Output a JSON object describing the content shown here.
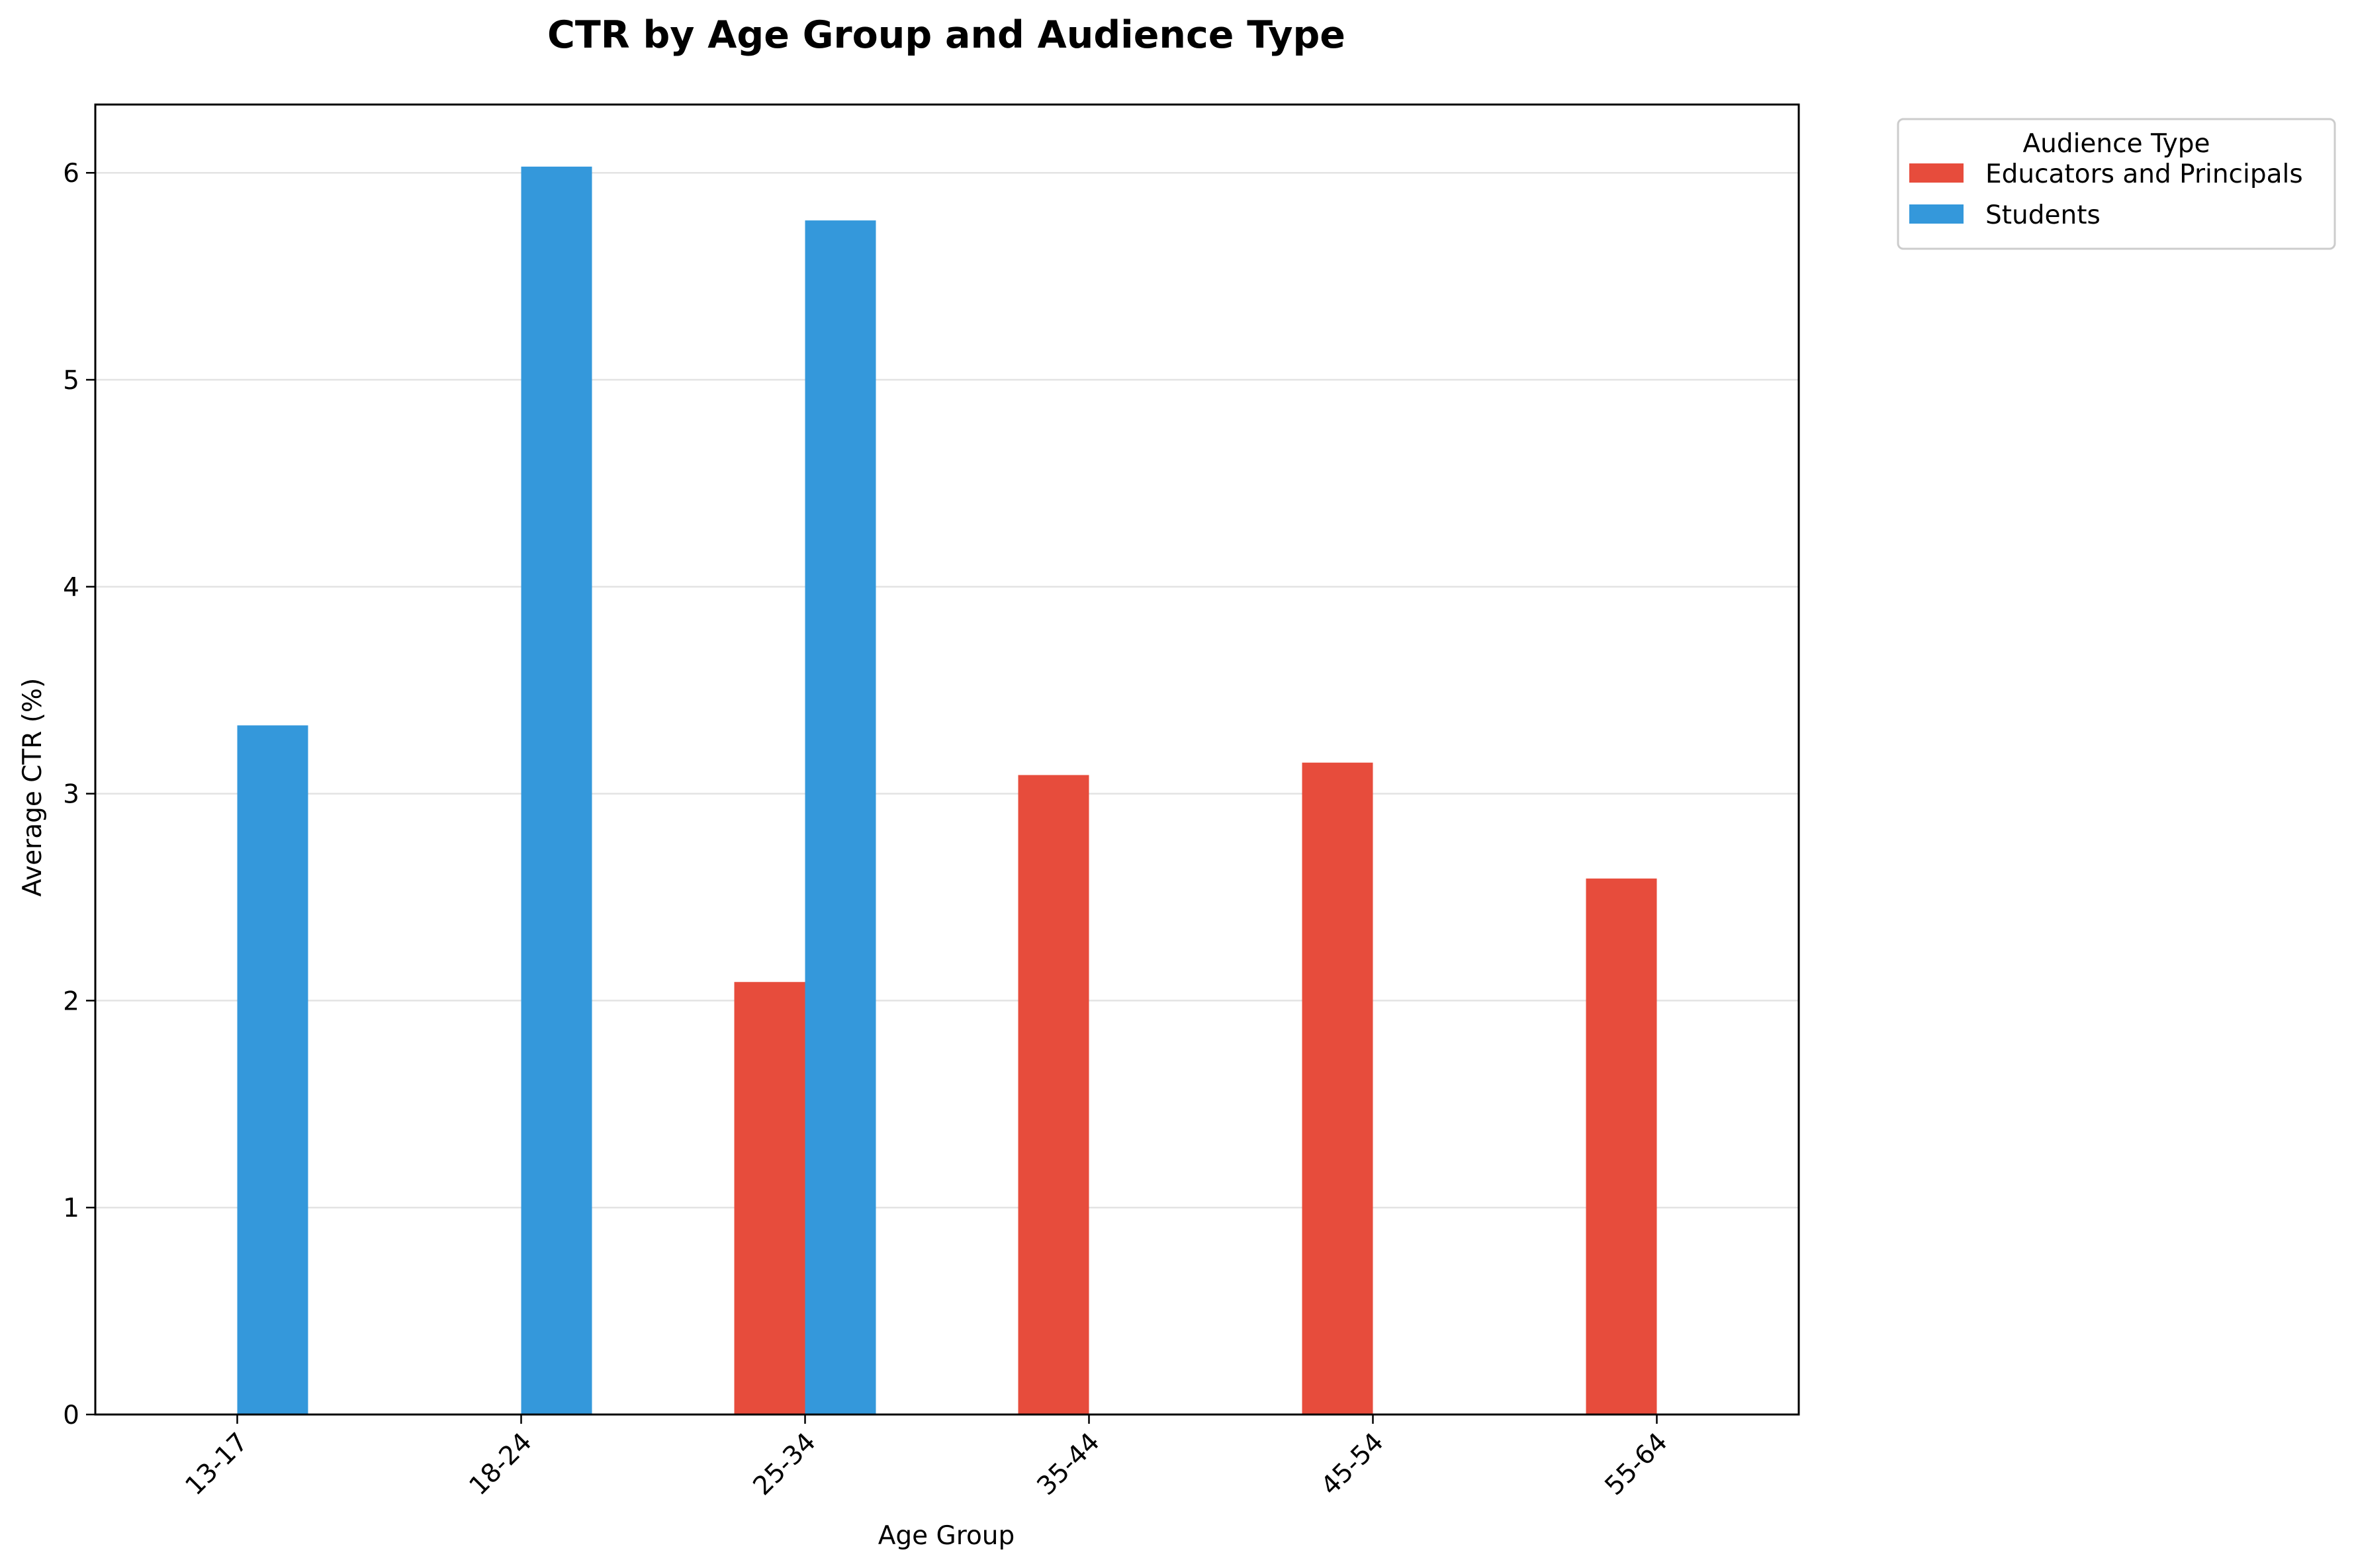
{
  "chart_data": {
    "type": "bar",
    "title": "CTR by Age Group and Audience Type",
    "xlabel": "Age Group",
    "ylabel": "Average CTR (%)",
    "categories": [
      "13-17",
      "18-24",
      "25-34",
      "35-44",
      "45-54",
      "55-64"
    ],
    "series": [
      {
        "name": "Educators and Principals",
        "color": "#e74c3c",
        "values": [
          0,
          0,
          2.09,
          3.09,
          3.15,
          2.59
        ]
      },
      {
        "name": "Students",
        "color": "#3498db",
        "values": [
          3.33,
          6.03,
          5.77,
          0,
          0,
          0
        ]
      }
    ],
    "ylim": [
      0,
      6.33
    ],
    "yticks": [
      0,
      1,
      2,
      3,
      4,
      5,
      6
    ],
    "grid": "y",
    "legend": {
      "title": "Audience Type",
      "placement": "outside-top-right"
    }
  }
}
